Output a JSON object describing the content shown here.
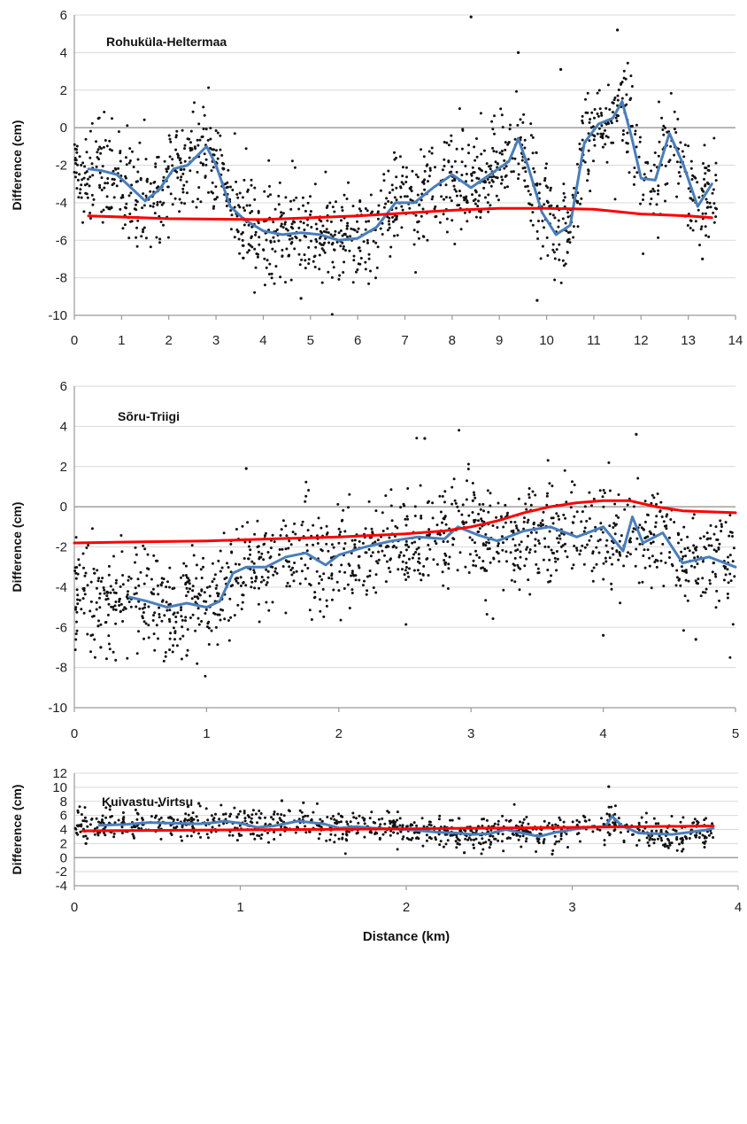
{
  "chart_data": [
    {
      "type": "scatter",
      "title": "Rohuküla-Heltermaa",
      "ylabel": "Difference (cm)",
      "xlabel": "",
      "xlim": [
        0,
        14
      ],
      "ylim": [
        -10,
        6
      ],
      "x_ticks": [
        "0",
        "1",
        "2",
        "3",
        "4",
        "5",
        "6",
        "7",
        "8",
        "9",
        "10",
        "11",
        "12",
        "13",
        "14"
      ],
      "y_ticks": [
        "6",
        "4",
        "2",
        "0",
        "-2",
        "-4",
        "-6",
        "-8",
        "-10"
      ],
      "grid": true,
      "series": [
        {
          "kind": "scatter",
          "color": "#111111",
          "n_points": 1400,
          "range": [
            0,
            13.6
          ],
          "center_series": 1,
          "spread": 1.3,
          "outliers": [
            [
              8.4,
              5.9
            ],
            [
              11.5,
              5.2
            ],
            [
              9.4,
              4.0
            ],
            [
              10.3,
              3.1
            ],
            [
              9.8,
              -9.2
            ],
            [
              4.8,
              -9.1
            ],
            [
              13.3,
              -7.0
            ]
          ]
        },
        {
          "kind": "line",
          "color": "#4a7ebb",
          "x": [
            0.3,
            0.6,
            0.9,
            1.2,
            1.5,
            1.8,
            2.1,
            2.4,
            2.8,
            3.0,
            3.3,
            3.6,
            4.0,
            4.4,
            4.8,
            5.2,
            5.6,
            6.0,
            6.4,
            6.8,
            7.2,
            7.6,
            8.0,
            8.4,
            8.8,
            9.2,
            9.4,
            9.6,
            9.9,
            10.2,
            10.5,
            10.8,
            11.1,
            11.4,
            11.6,
            11.8,
            12.0,
            12.3,
            12.6,
            12.9,
            13.2,
            13.5
          ],
          "y": [
            -2.2,
            -2.3,
            -2.5,
            -3.2,
            -3.9,
            -3.3,
            -2.2,
            -2.0,
            -1.0,
            -2.0,
            -4.2,
            -4.9,
            -5.5,
            -5.7,
            -5.6,
            -5.7,
            -6.0,
            -5.9,
            -5.3,
            -4.0,
            -4.0,
            -3.2,
            -2.5,
            -3.2,
            -2.5,
            -1.8,
            -0.6,
            -2.0,
            -4.5,
            -5.7,
            -5.2,
            -0.8,
            0.2,
            0.5,
            1.4,
            -0.5,
            -2.7,
            -2.8,
            -0.3,
            -2.0,
            -4.2,
            -3.0
          ]
        },
        {
          "kind": "line",
          "color": "#ff0000",
          "x": [
            0.3,
            2,
            4,
            6,
            8,
            9,
            10,
            11,
            12,
            13,
            13.5
          ],
          "y": [
            -4.7,
            -4.85,
            -4.9,
            -4.7,
            -4.4,
            -4.3,
            -4.3,
            -4.35,
            -4.6,
            -4.7,
            -4.8
          ]
        }
      ]
    },
    {
      "type": "scatter",
      "title": "Sõru-Triigi",
      "ylabel": "Difference (cm)",
      "xlabel": "",
      "xlim": [
        0,
        5
      ],
      "ylim": [
        -10,
        6
      ],
      "x_ticks": [
        "0",
        "1",
        "2",
        "3",
        "4",
        "5"
      ],
      "y_ticks": [
        "6",
        "4",
        "2",
        "0",
        "-2",
        "-4",
        "-6",
        "-8",
        "-10"
      ],
      "grid": true,
      "series": [
        {
          "kind": "scatter",
          "color": "#111111",
          "n_points": 1300,
          "range": [
            0,
            5
          ],
          "center_series": 1,
          "spread": 1.3,
          "outliers": [
            [
              4.25,
              3.6
            ],
            [
              2.65,
              3.4
            ],
            [
              0.2,
              -7.0
            ],
            [
              0.85,
              -7.4
            ],
            [
              4.7,
              -6.6
            ],
            [
              4.0,
              -6.4
            ],
            [
              1.3,
              1.9
            ]
          ]
        },
        {
          "kind": "line",
          "color": "#4a7ebb",
          "x": [
            0.42,
            0.55,
            0.7,
            0.85,
            1.0,
            1.1,
            1.2,
            1.3,
            1.45,
            1.6,
            1.75,
            1.9,
            2.0,
            2.2,
            2.4,
            2.6,
            2.8,
            2.9,
            3.05,
            3.2,
            3.4,
            3.6,
            3.8,
            4.0,
            4.15,
            4.22,
            4.3,
            4.45,
            4.6,
            4.8,
            5.0
          ],
          "y": [
            -4.5,
            -4.7,
            -5.0,
            -4.8,
            -5.0,
            -4.7,
            -3.3,
            -3.0,
            -3.0,
            -2.5,
            -2.3,
            -2.9,
            -2.4,
            -2.0,
            -1.7,
            -1.5,
            -1.6,
            -1.0,
            -1.4,
            -1.7,
            -1.2,
            -1.0,
            -1.5,
            -1.0,
            -2.2,
            -0.5,
            -1.8,
            -1.3,
            -2.8,
            -2.5,
            -3.0
          ]
        },
        {
          "kind": "line",
          "color": "#ff0000",
          "x": [
            0.0,
            0.5,
            1.0,
            1.5,
            2.0,
            2.5,
            2.8,
            3.0,
            3.2,
            3.4,
            3.6,
            3.8,
            4.0,
            4.2,
            4.4,
            4.6,
            5.0
          ],
          "y": [
            -1.8,
            -1.75,
            -1.7,
            -1.6,
            -1.5,
            -1.35,
            -1.2,
            -1.0,
            -0.7,
            -0.3,
            0.0,
            0.2,
            0.3,
            0.3,
            0.0,
            -0.2,
            -0.3
          ]
        }
      ]
    },
    {
      "type": "scatter",
      "title": "Kuivastu-Virtsu",
      "ylabel": "Difference (cm)",
      "xlabel": "Distance (km)",
      "xlim": [
        0,
        4
      ],
      "ylim": [
        -4,
        12
      ],
      "x_ticks": [
        "0",
        "1",
        "2",
        "3",
        "4"
      ],
      "y_ticks": [
        "12",
        "10",
        "8",
        "6",
        "4",
        "2",
        "0",
        "-2",
        "-4"
      ],
      "grid": true,
      "series": [
        {
          "kind": "scatter",
          "color": "#111111",
          "n_points": 900,
          "range": [
            0,
            3.85
          ],
          "center_series": 1,
          "spread": 1.1,
          "outliers": [
            [
              3.22,
              10.1
            ],
            [
              1.25,
              8.1
            ],
            [
              1.38,
              7.8
            ],
            [
              0.75,
              7.7
            ],
            [
              2.88,
              0.5
            ],
            [
              2.35,
              0.7
            ],
            [
              0.07,
              2.0
            ]
          ]
        },
        {
          "kind": "line",
          "color": "#4a7ebb",
          "x": [
            0.15,
            0.3,
            0.45,
            0.6,
            0.75,
            0.85,
            0.9,
            1.0,
            1.1,
            1.2,
            1.35,
            1.5,
            1.6,
            1.7,
            1.8,
            1.9,
            2.0,
            2.1,
            2.2,
            2.3,
            2.4,
            2.5,
            2.6,
            2.7,
            2.8,
            2.9,
            3.0,
            3.1,
            3.2,
            3.24,
            3.3,
            3.4,
            3.5,
            3.6,
            3.7,
            3.8,
            3.85
          ],
          "y": [
            4.6,
            4.7,
            5.0,
            4.9,
            4.8,
            5.0,
            5.2,
            4.9,
            4.3,
            4.5,
            5.2,
            4.8,
            4.2,
            4.4,
            4.2,
            4.1,
            4.0,
            3.8,
            3.6,
            3.5,
            3.3,
            3.4,
            4.0,
            3.5,
            3.0,
            3.6,
            4.0,
            4.3,
            4.4,
            5.9,
            4.5,
            3.5,
            3.4,
            3.3,
            3.6,
            3.9,
            4.2
          ]
        },
        {
          "kind": "line",
          "color": "#ff0000",
          "x": [
            0.05,
            1.0,
            2.0,
            3.0,
            3.85
          ],
          "y": [
            3.8,
            3.95,
            4.1,
            4.3,
            4.5
          ]
        }
      ]
    }
  ]
}
